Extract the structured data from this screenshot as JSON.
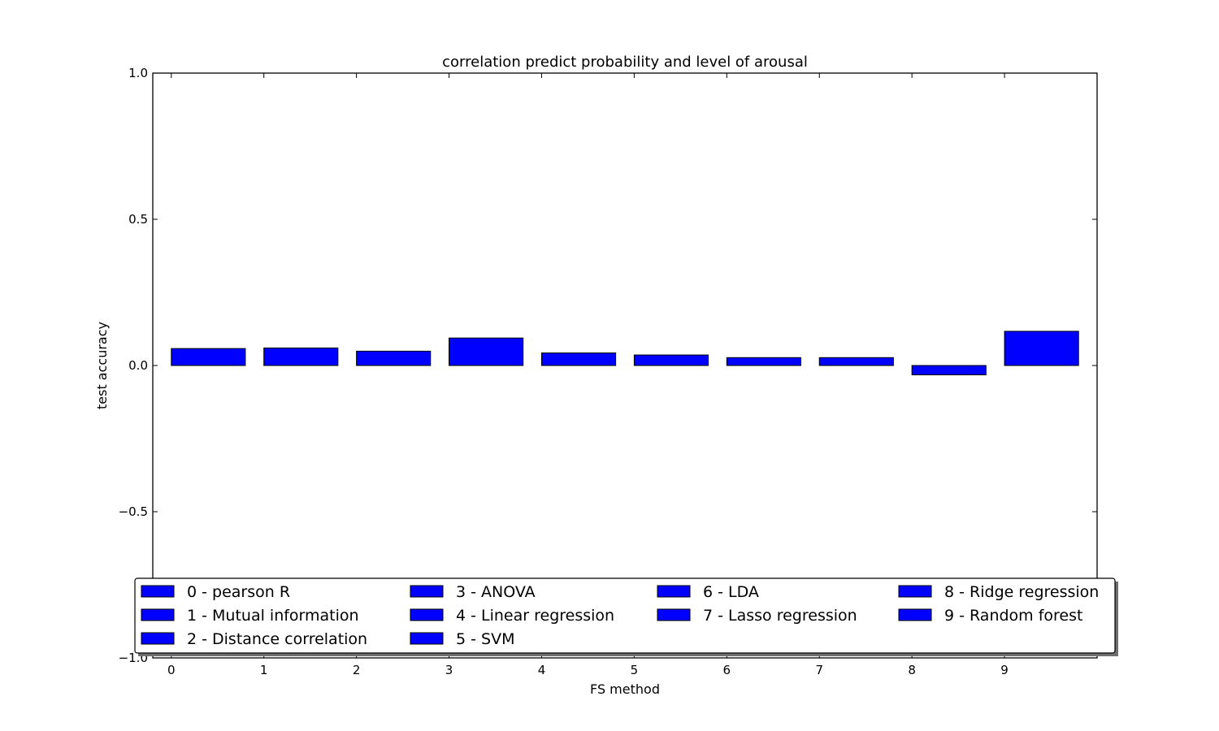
{
  "chart_data": {
    "type": "bar",
    "title": "correlation predict probability and level of arousal",
    "xlabel": "FS method",
    "ylabel": "test accuracy",
    "ylim": [
      -1.0,
      1.0
    ],
    "yticks": [
      1.0,
      0.5,
      0.0,
      -0.5,
      -1.0
    ],
    "ytick_labels": [
      "1.0",
      "0.5",
      "0.0",
      "−0.5",
      "−1.0"
    ],
    "xlim": [
      -0.2,
      10.0
    ],
    "categories": [
      "0",
      "1",
      "2",
      "3",
      "4",
      "5",
      "6",
      "7",
      "8",
      "9"
    ],
    "values": [
      0.058,
      0.06,
      0.049,
      0.094,
      0.043,
      0.036,
      0.027,
      0.027,
      -0.032,
      0.117
    ],
    "bar_color": "#0000ff",
    "bar_edge_color": "#000000",
    "grid": false,
    "legend": {
      "placement": "lower-center",
      "columns": 4,
      "entries": [
        "0 - pearson R",
        "1 - Mutual information",
        "2 - Distance correlation",
        "3 - ANOVA",
        "4 - Linear regression",
        "5 - SVM",
        "6 - LDA",
        "7 - Lasso regression",
        "8 - Ridge regression",
        "9 - Random forest"
      ]
    }
  }
}
